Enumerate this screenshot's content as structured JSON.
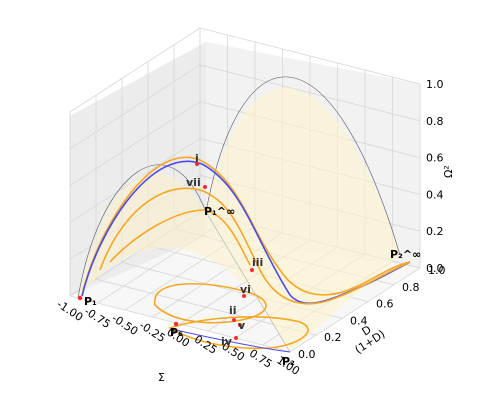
{
  "chart_data": {
    "type": "line",
    "projection": "3d",
    "axes": {
      "x": {
        "label": "Σ",
        "ticks": [
          "-1.00",
          "-0.75",
          "-0.50",
          "-0.25",
          "0.00",
          "0.25",
          "0.50",
          "0.75",
          "1.00"
        ],
        "range": [
          -1,
          1
        ]
      },
      "y": {
        "label_num": "D",
        "label_den": "(1+D)",
        "ticks": [
          "0.0",
          "0.2",
          "0.4",
          "0.6",
          "0.8",
          "1.0"
        ],
        "range": [
          0,
          1
        ]
      },
      "z": {
        "label": "Ω²",
        "ticks": [
          "0.0",
          "0.2",
          "0.4",
          "0.6",
          "0.8",
          "1.0"
        ],
        "range": [
          0,
          1
        ]
      }
    },
    "surface": {
      "description_color": "#fdf3cc"
    },
    "critical_points": [
      {
        "label": "P₁",
        "x": -1.0,
        "y": 0.0,
        "z": 0.0
      },
      {
        "label": "P₂",
        "x": 1.0,
        "y": 0.0,
        "z": 0.0
      },
      {
        "label": "P₆",
        "x": 0.0,
        "y": 0.0,
        "z": 0.0
      },
      {
        "label": "P₁^∞",
        "x": -1.0,
        "y": 1.0,
        "z": 0.0
      },
      {
        "label": "P₂^∞",
        "x": 1.0,
        "y": 1.0,
        "z": 0.0
      }
    ],
    "markers": [
      "i",
      "ii",
      "iii",
      "iv",
      "v",
      "vi",
      "vii"
    ],
    "series_colors": [
      "#f6a623",
      "#4a4af0",
      "#ff2a2a"
    ],
    "grid": true
  }
}
